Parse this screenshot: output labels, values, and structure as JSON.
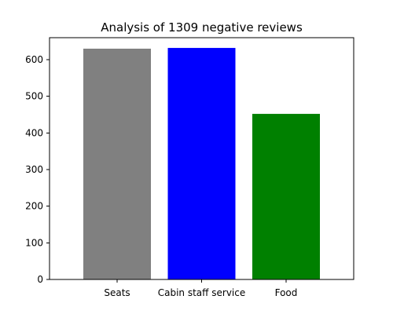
{
  "chart_data": {
    "type": "bar",
    "title": "Analysis of 1309 negative reviews",
    "xlabel": "",
    "ylabel": "",
    "categories": [
      "Seats",
      "Cabin staff service",
      "Food"
    ],
    "values": [
      630,
      632,
      452
    ],
    "colors": [
      "#808080",
      "#0000ff",
      "#008000"
    ],
    "ylim": [
      0,
      660
    ],
    "yticks": [
      0,
      100,
      200,
      300,
      400,
      500,
      600
    ],
    "grid": false,
    "legend": "none"
  }
}
